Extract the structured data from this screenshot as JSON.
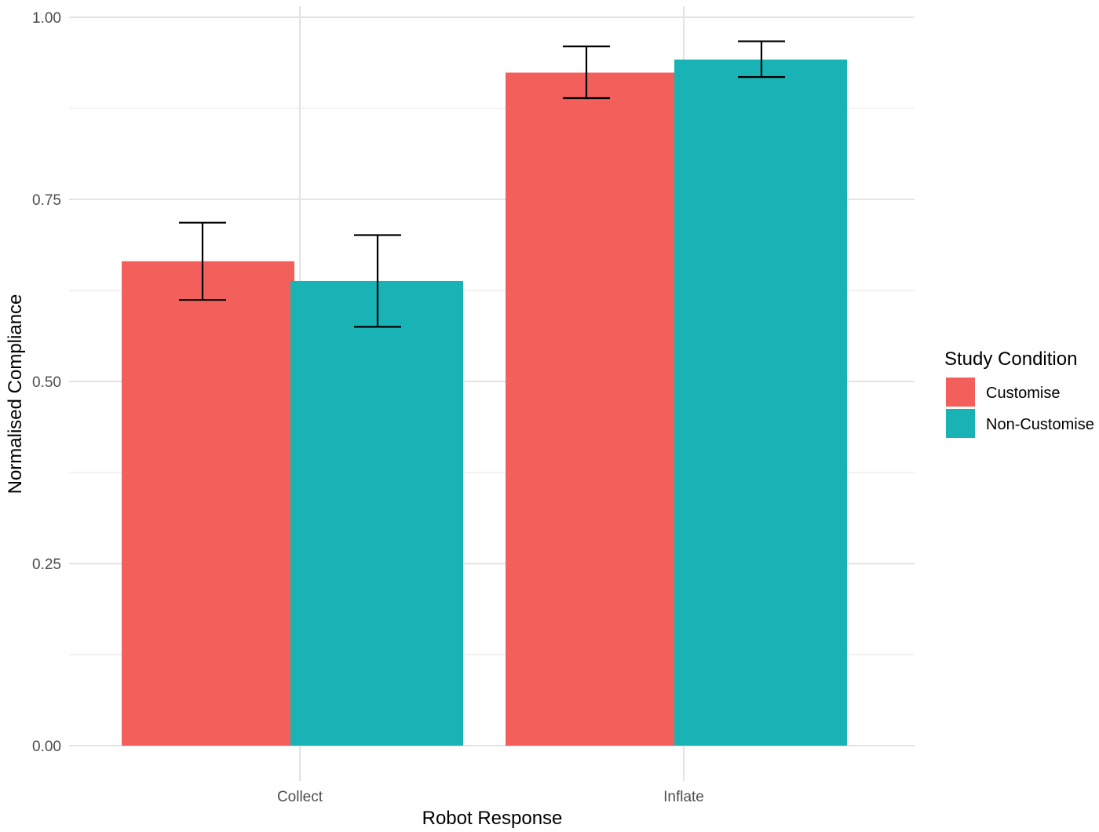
{
  "chart_data": {
    "type": "bar",
    "title": "",
    "xlabel": "Robot Response",
    "ylabel": "Normalised Compliance",
    "categories": [
      "Collect",
      "Inflate"
    ],
    "ylim": [
      0,
      1
    ],
    "yticks": [
      0,
      0.25,
      0.5,
      0.75,
      1
    ],
    "ytick_labels": [
      "0.00",
      "0.25",
      "0.50",
      "0.75",
      "1.00"
    ],
    "grid": true,
    "legend": {
      "title": "Study Condition",
      "placement": "right"
    },
    "series": [
      {
        "name": "Customise",
        "color": "#F35F5A",
        "values": [
          0.665,
          0.924
        ],
        "error_lower": [
          0.612,
          0.889
        ],
        "error_upper": [
          0.718,
          0.96
        ]
      },
      {
        "name": "Non-Customise",
        "color": "#19B3B6",
        "values": [
          0.638,
          0.942
        ],
        "error_lower": [
          0.575,
          0.918
        ],
        "error_upper": [
          0.701,
          0.967
        ]
      }
    ]
  }
}
